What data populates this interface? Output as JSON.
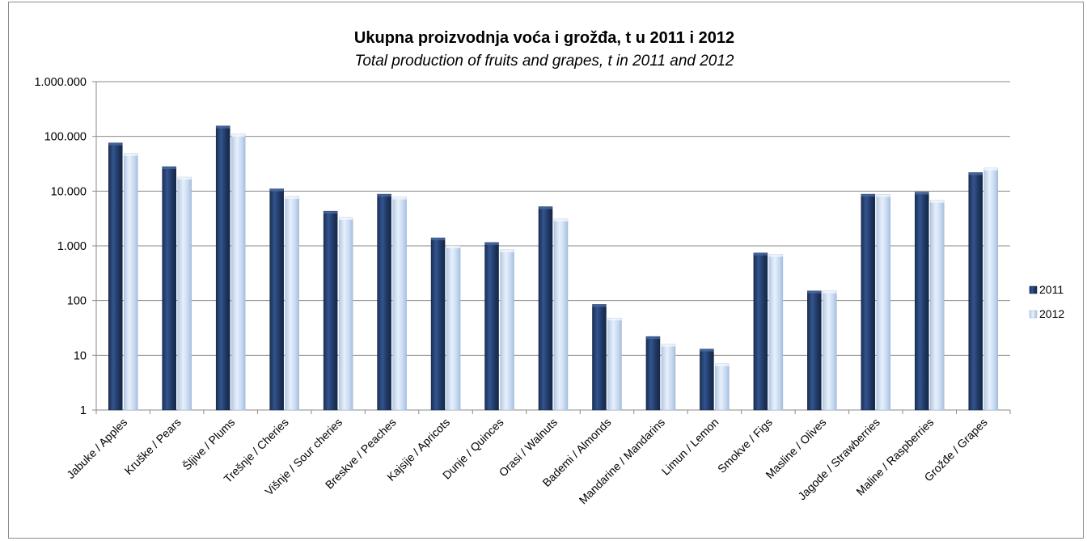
{
  "chart_data": {
    "type": "bar",
    "title": "Ukupna proizvodnja voća i grožđa, t u 2011 i 2012",
    "subtitle": "Total production of fruits and grapes, t in 2011 and 2012",
    "xlabel": "",
    "ylabel": "",
    "yscale": "log",
    "ylim": [
      1,
      1000000
    ],
    "yticks": [
      1,
      10,
      100,
      1000,
      10000,
      100000,
      1000000
    ],
    "ytick_labels": [
      "1",
      "10",
      "100",
      "1.000",
      "10.000",
      "100.000",
      "1.000.000"
    ],
    "grid": true,
    "legend_position": "right",
    "categories": [
      "Jabuke / Apples",
      "Kruške / Pears",
      "Šljive / Plums",
      "Trešnje / Cheries",
      "Višnje / Sour cheries",
      "Breskve / Peaches",
      "Kajsije / Apricots",
      "Dunje / Quinces",
      "Orasi / Walnuts",
      "Bademi / Almonds",
      "Mandarine / Mandarins",
      "Limun / Lemon",
      "Smokve / Figs",
      "Masline / Olives",
      "Jagode / Strawberries",
      "Maline / Raspberries",
      "Grožđe / Grapes"
    ],
    "series": [
      {
        "name": "2011",
        "color": "#1f3864",
        "values": [
          76000,
          28000,
          155000,
          11000,
          4300,
          8800,
          1400,
          1150,
          5200,
          85,
          22,
          13,
          740,
          150,
          8800,
          9600,
          21800
        ]
      },
      {
        "name": "2012",
        "color": "#c6d9f1",
        "values": [
          49000,
          18000,
          110000,
          8000,
          3300,
          7800,
          1000,
          850,
          3100,
          48,
          16,
          7,
          700,
          150,
          8700,
          6800,
          26500
        ]
      }
    ]
  }
}
